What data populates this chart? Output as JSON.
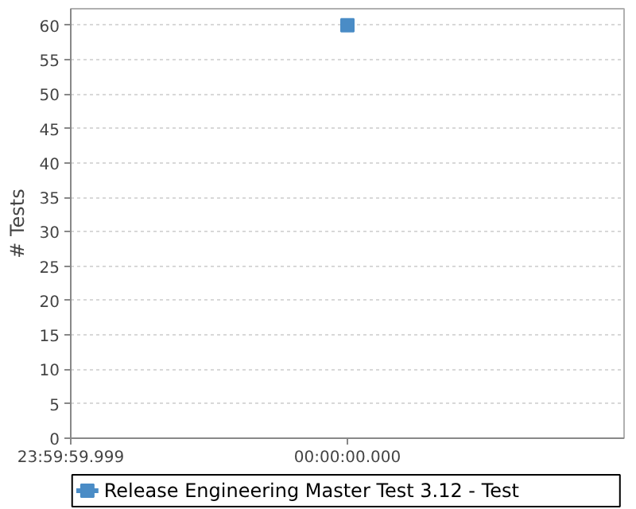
{
  "chart_data": {
    "type": "line",
    "ylabel": "# Tests",
    "categories": [
      "23:59:59.999",
      "00:00:00.000"
    ],
    "series": [
      {
        "name": "Release Engineering Master Test 3.12 - Test",
        "color": "#4a8cc6",
        "values": [
          null,
          60
        ]
      }
    ],
    "ylim": [
      0,
      62.4
    ],
    "yticks": [
      0,
      5,
      10,
      15,
      20,
      25,
      30,
      35,
      40,
      45,
      50,
      55,
      60
    ],
    "grid": "y",
    "legend": "bottom",
    "marker": "square"
  }
}
